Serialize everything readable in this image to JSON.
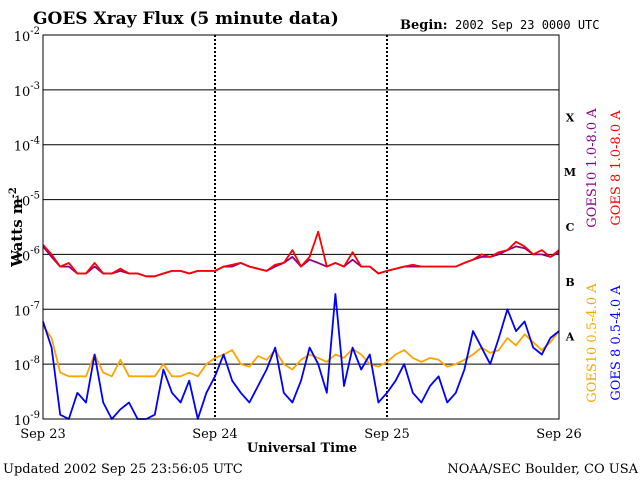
{
  "chart_data": {
    "type": "line",
    "title": "GOES Xray Flux (5 minute data)",
    "begin_label": "Begin:",
    "begin_value": "2002 Sep 23 0000 UTC",
    "xlabel": "Universal Time",
    "ylabel": "Watts m",
    "ylabel_exp": "-2",
    "x_ticks": [
      "Sep 23",
      "Sep 24",
      "Sep 25",
      "Sep 26"
    ],
    "x_range_days": [
      0,
      3
    ],
    "y_scale": "log",
    "ylim": [
      1e-09,
      0.01
    ],
    "y_tick_base": "10",
    "y_tick_exponents": [
      "-2",
      "-3",
      "-4",
      "-5",
      "-6",
      "-7",
      "-8",
      "-9"
    ],
    "class_labels": [
      "X",
      "M",
      "C",
      "B",
      "A"
    ],
    "grid": "horizontal decades",
    "series": [
      {
        "name": "GOES10 0.5-4.0 A",
        "color": "#ffa500",
        "x": [
          0,
          0.05,
          0.1,
          0.15,
          0.2,
          0.25,
          0.3,
          0.35,
          0.4,
          0.45,
          0.5,
          0.55,
          0.6,
          0.65,
          0.7,
          0.75,
          0.8,
          0.85,
          0.9,
          0.95,
          1.0,
          1.05,
          1.1,
          1.15,
          1.2,
          1.25,
          1.3,
          1.35,
          1.4,
          1.45,
          1.5,
          1.55,
          1.6,
          1.65,
          1.7,
          1.75,
          1.8,
          1.85,
          1.9,
          1.95,
          2.0,
          2.05,
          2.1,
          2.15,
          2.2,
          2.25,
          2.3,
          2.35,
          2.4,
          2.45,
          2.5,
          2.55,
          2.6,
          2.65,
          2.7,
          2.75,
          2.8,
          2.85,
          2.9,
          2.95,
          3.0
        ],
        "y": [
          5e-08,
          3e-08,
          7e-09,
          6e-09,
          6e-09,
          6e-09,
          1.5e-08,
          7e-09,
          6e-09,
          1.2e-08,
          6e-09,
          6e-09,
          6e-09,
          6e-09,
          1e-08,
          6e-09,
          6e-09,
          7e-09,
          6e-09,
          1e-08,
          1.3e-08,
          1.5e-08,
          1.8e-08,
          1e-08,
          9e-09,
          1.4e-08,
          1.2e-08,
          1.8e-08,
          1e-08,
          8e-09,
          1.2e-08,
          1.5e-08,
          1.3e-08,
          1.1e-08,
          1.5e-08,
          1.3e-08,
          1.9e-08,
          1.5e-08,
          1e-08,
          9e-09,
          1.1e-08,
          1.5e-08,
          1.8e-08,
          1.3e-08,
          1.1e-08,
          1.3e-08,
          1.2e-08,
          9e-09,
          1e-08,
          1.2e-08,
          1.5e-08,
          2e-08,
          1.6e-08,
          1.8e-08,
          3e-08,
          2.2e-08,
          3.5e-08,
          2.5e-08,
          1.8e-08,
          2.5e-08,
          4e-08
        ]
      },
      {
        "name": "GOES 8 0.5-4.0 A",
        "color": "#0000ff",
        "x": [
          0,
          0.05,
          0.1,
          0.15,
          0.2,
          0.25,
          0.3,
          0.35,
          0.4,
          0.45,
          0.5,
          0.55,
          0.6,
          0.65,
          0.7,
          0.75,
          0.8,
          0.85,
          0.9,
          0.95,
          1.0,
          1.05,
          1.1,
          1.15,
          1.2,
          1.25,
          1.3,
          1.35,
          1.4,
          1.45,
          1.5,
          1.55,
          1.6,
          1.65,
          1.7,
          1.75,
          1.8,
          1.85,
          1.9,
          1.95,
          2.0,
          2.05,
          2.1,
          2.15,
          2.2,
          2.25,
          2.3,
          2.35,
          2.4,
          2.45,
          2.5,
          2.55,
          2.6,
          2.65,
          2.7,
          2.75,
          2.8,
          2.85,
          2.9,
          2.95,
          3.0
        ],
        "y": [
          6e-08,
          2e-08,
          1.2e-09,
          1e-09,
          3e-09,
          2e-09,
          1.5e-08,
          2e-09,
          1e-09,
          1.5e-09,
          2e-09,
          1e-09,
          1e-09,
          1.2e-09,
          8e-09,
          3e-09,
          2e-09,
          5e-09,
          1e-09,
          3e-09,
          6e-09,
          1.5e-08,
          5e-09,
          3e-09,
          2e-09,
          4e-09,
          8e-09,
          2e-08,
          3e-09,
          2e-09,
          5e-09,
          2e-08,
          1e-08,
          3e-09,
          1.9e-07,
          4e-09,
          2e-08,
          8e-09,
          1.5e-08,
          2e-09,
          3e-09,
          5e-09,
          1e-08,
          3e-09,
          2e-09,
          4e-09,
          6e-09,
          2e-09,
          3e-09,
          8e-09,
          4e-08,
          2e-08,
          1e-08,
          3e-08,
          1e-07,
          4e-08,
          6e-08,
          2e-08,
          1.5e-08,
          3e-08,
          4e-08
        ]
      },
      {
        "name": "GOES10 1.0-8.0 A",
        "color": "#8b008b",
        "x": [
          0,
          0.05,
          0.1,
          0.15,
          0.2,
          0.25,
          0.3,
          0.35,
          0.4,
          0.45,
          0.5,
          0.55,
          0.6,
          0.65,
          0.7,
          0.75,
          0.8,
          0.85,
          0.9,
          0.95,
          1.0,
          1.05,
          1.1,
          1.15,
          1.2,
          1.25,
          1.3,
          1.35,
          1.4,
          1.45,
          1.5,
          1.55,
          1.6,
          1.65,
          1.7,
          1.75,
          1.8,
          1.85,
          1.9,
          1.95,
          2.0,
          2.05,
          2.1,
          2.15,
          2.2,
          2.25,
          2.3,
          2.35,
          2.4,
          2.45,
          2.5,
          2.55,
          2.6,
          2.65,
          2.7,
          2.75,
          2.8,
          2.85,
          2.9,
          2.95,
          3.0
        ],
        "y": [
          1.4e-06,
          9e-07,
          6e-07,
          6e-07,
          4.5e-07,
          4.5e-07,
          6e-07,
          4.5e-07,
          4.5e-07,
          5e-07,
          4.5e-07,
          4.5e-07,
          4e-07,
          4e-07,
          4.5e-07,
          5e-07,
          5e-07,
          4.5e-07,
          5e-07,
          5e-07,
          5e-07,
          6e-07,
          6e-07,
          7e-07,
          6e-07,
          5.5e-07,
          5e-07,
          6e-07,
          7e-07,
          9e-07,
          6e-07,
          8e-07,
          7e-07,
          6e-07,
          7e-07,
          6e-07,
          8e-07,
          6e-07,
          6e-07,
          4.5e-07,
          5e-07,
          5.5e-07,
          6e-07,
          6e-07,
          6e-07,
          6e-07,
          6e-07,
          6e-07,
          6e-07,
          7e-07,
          8e-07,
          9e-07,
          9e-07,
          1e-06,
          1.2e-06,
          1.4e-06,
          1.3e-06,
          1e-06,
          1e-06,
          9e-07,
          1.1e-06
        ]
      },
      {
        "name": "GOES 8 1.0-8.0 A",
        "color": "#ff0000",
        "x": [
          0,
          0.05,
          0.1,
          0.15,
          0.2,
          0.25,
          0.3,
          0.35,
          0.4,
          0.45,
          0.5,
          0.55,
          0.6,
          0.65,
          0.7,
          0.75,
          0.8,
          0.85,
          0.9,
          0.95,
          1.0,
          1.05,
          1.1,
          1.15,
          1.2,
          1.25,
          1.3,
          1.35,
          1.4,
          1.45,
          1.5,
          1.55,
          1.6,
          1.65,
          1.7,
          1.75,
          1.8,
          1.85,
          1.9,
          1.95,
          2.0,
          2.05,
          2.1,
          2.15,
          2.2,
          2.25,
          2.3,
          2.35,
          2.4,
          2.45,
          2.5,
          2.55,
          2.6,
          2.65,
          2.7,
          2.75,
          2.8,
          2.85,
          2.9,
          2.95,
          3.0
        ],
        "y": [
          1.5e-06,
          1e-06,
          6e-07,
          7e-07,
          4.5e-07,
          4.5e-07,
          7e-07,
          4.5e-07,
          4.5e-07,
          5.5e-07,
          4.5e-07,
          4.5e-07,
          4e-07,
          4e-07,
          4.5e-07,
          5e-07,
          5e-07,
          4.5e-07,
          5e-07,
          5e-07,
          5e-07,
          6e-07,
          6.5e-07,
          7e-07,
          6e-07,
          5.5e-07,
          5e-07,
          6.5e-07,
          7e-07,
          1.2e-06,
          6e-07,
          9e-07,
          2.6e-06,
          6e-07,
          7e-07,
          6e-07,
          1.1e-06,
          6e-07,
          6e-07,
          4.5e-07,
          5e-07,
          5.5e-07,
          6e-07,
          6.5e-07,
          6e-07,
          6e-07,
          6e-07,
          6e-07,
          6e-07,
          7e-07,
          8e-07,
          1e-06,
          9e-07,
          1.1e-06,
          1.2e-06,
          1.7e-06,
          1.4e-06,
          1e-06,
          1.2e-06,
          9e-07,
          1.2e-06
        ]
      }
    ],
    "footer_left": "Updated 2002 Sep 25 23:56:05 UTC",
    "footer_right": "NOAA/SEC Boulder, CO USA"
  }
}
